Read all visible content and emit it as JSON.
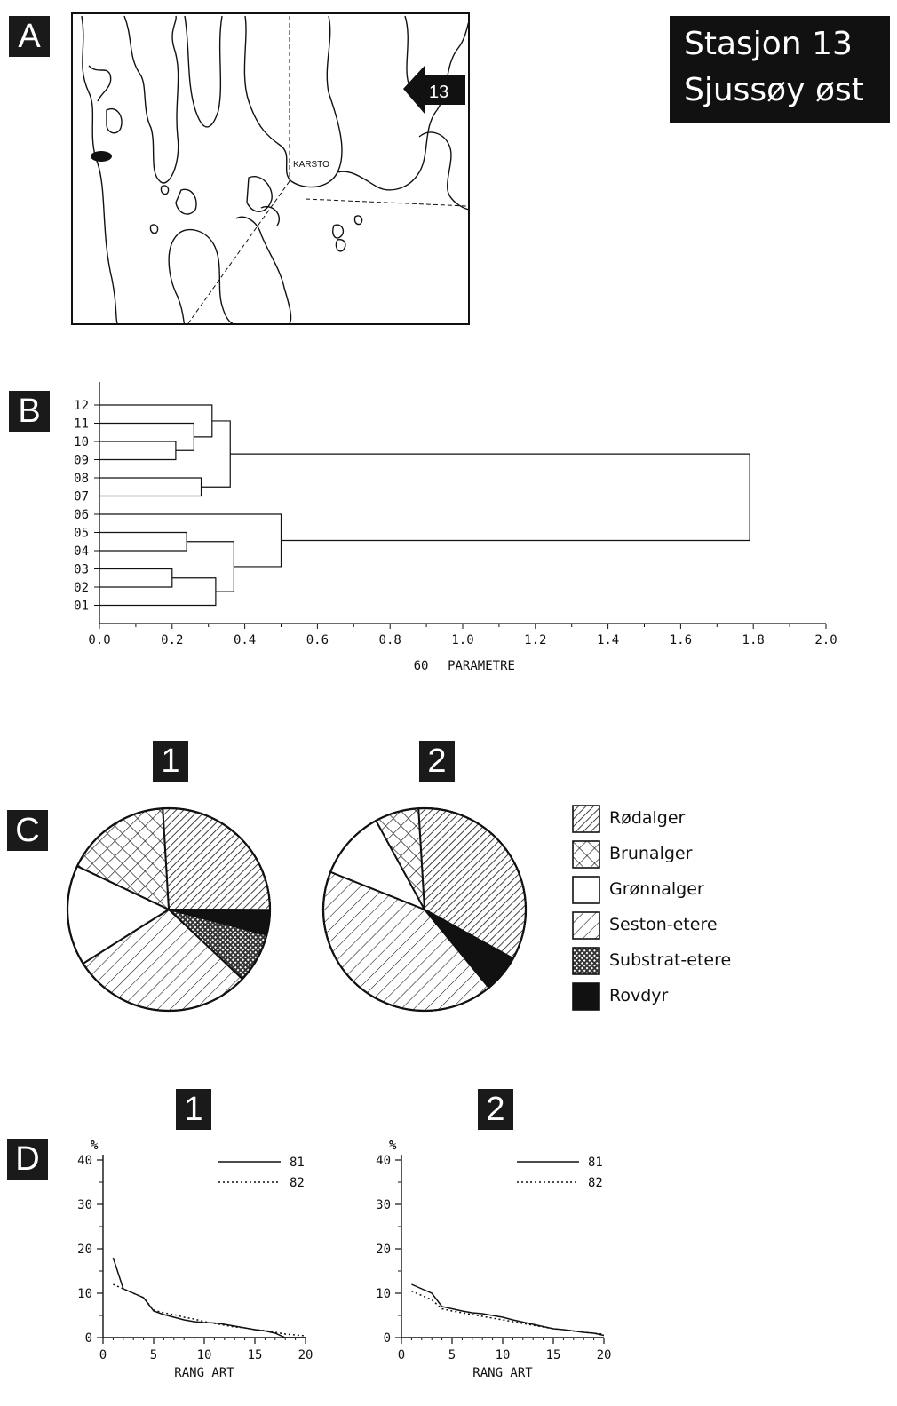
{
  "panels": {
    "a": "A",
    "b": "B",
    "c": "C",
    "d": "D"
  },
  "station": {
    "line1": "Stasjon 13",
    "line2": "Sjussøy øst"
  },
  "map": {
    "place_label": "KARSTO",
    "station_marker": "13"
  },
  "dendrogram": {
    "leaf_labels": [
      "12",
      "11",
      "10",
      "09",
      "08",
      "07",
      "06",
      "05",
      "04",
      "03",
      "02",
      "01"
    ],
    "x_ticks": [
      "0.0",
      "0.2",
      "0.4",
      "0.6",
      "0.8",
      "1.0",
      "1.2",
      "1.4",
      "1.6",
      "1.8",
      "2.0"
    ],
    "xlabel_num": "60",
    "xlabel_text": "PARAMETRE"
  },
  "colors": {
    "ink": "#111111",
    "paper": "#ffffff",
    "badge": "#1a1a1a"
  },
  "legend": [
    {
      "key": "rodalger",
      "label": "Rødalger",
      "pattern": "diagonal-dense"
    },
    {
      "key": "brunalger",
      "label": "Brunalger",
      "pattern": "crosshatch"
    },
    {
      "key": "gronnalger",
      "label": "Grønnalger",
      "pattern": "white"
    },
    {
      "key": "seston",
      "label": "Seston-etere",
      "pattern": "diagonal-sparse"
    },
    {
      "key": "substrat",
      "label": "Substrat-etere",
      "pattern": "dense-dots"
    },
    {
      "key": "rovdyr",
      "label": "Rovdyr",
      "pattern": "solid-black"
    }
  ],
  "pie_titles": [
    "1",
    "2"
  ],
  "rank_titles": [
    "1",
    "2"
  ],
  "rank_axis": {
    "y_unit": "%",
    "y_ticks": [
      "40",
      "30",
      "20",
      "10",
      "0"
    ],
    "x_ticks": [
      "0",
      "5",
      "10",
      "15",
      "20"
    ],
    "xlabel": "RANG ART",
    "legend_solid": "81",
    "legend_dotted": "82"
  },
  "chart_data": [
    {
      "type": "dendrogram",
      "xlabel": "60 PARAMETRE",
      "xlim": [
        0,
        2.0
      ],
      "leaves": [
        "12",
        "11",
        "10",
        "09",
        "08",
        "07",
        "06",
        "05",
        "04",
        "03",
        "02",
        "01"
      ],
      "merges": [
        {
          "a": "10",
          "b": "09",
          "height": 0.21
        },
        {
          "a": "11",
          "b": "10-09",
          "height": 0.26
        },
        {
          "a": "12",
          "b": "11-10-09",
          "height": 0.31
        },
        {
          "a": "08",
          "b": "07",
          "height": 0.28
        },
        {
          "a": "12..09",
          "b": "08-07",
          "height": 0.36
        },
        {
          "a": "05",
          "b": "04",
          "height": 0.24
        },
        {
          "a": "03",
          "b": "02",
          "height": 0.2
        },
        {
          "a": "03-02",
          "b": "01",
          "height": 0.32
        },
        {
          "a": "05-04",
          "b": "03-02-01",
          "height": 0.37
        },
        {
          "a": "06",
          "b": "05..01",
          "height": 0.5
        },
        {
          "a": "12..07",
          "b": "06..01",
          "height": 1.79
        }
      ]
    },
    {
      "type": "pie",
      "title": "1",
      "slices": [
        {
          "name": "Rødalger",
          "value": 26
        },
        {
          "name": "Rovdyr",
          "value": 4
        },
        {
          "name": "Substrat-etere",
          "value": 8
        },
        {
          "name": "Seston-etere",
          "value": 29
        },
        {
          "name": "Grønnalger",
          "value": 16
        },
        {
          "name": "Brunalger",
          "value": 17
        }
      ]
    },
    {
      "type": "pie",
      "title": "2",
      "slices": [
        {
          "name": "Rødalger",
          "value": 34
        },
        {
          "name": "Rovdyr",
          "value": 6
        },
        {
          "name": "Substrat-etere",
          "value": 0
        },
        {
          "name": "Seston-etere",
          "value": 42
        },
        {
          "name": "Grønnalger",
          "value": 11
        },
        {
          "name": "Brunalger",
          "value": 7
        }
      ]
    },
    {
      "type": "line",
      "title": "1",
      "xlabel": "RANG ART",
      "ylabel": "%",
      "xlim": [
        0,
        20
      ],
      "ylim": [
        0,
        40
      ],
      "series": [
        {
          "name": "81",
          "style": "solid",
          "x": [
            1,
            2,
            3,
            4,
            5,
            6,
            7,
            8,
            9,
            10,
            11,
            12,
            13,
            14,
            15,
            16,
            17,
            18,
            19,
            20
          ],
          "y": [
            18,
            11,
            10,
            9,
            6,
            5.2,
            4.6,
            4,
            3.6,
            3.4,
            3.3,
            3,
            2.6,
            2.2,
            1.8,
            1.5,
            1,
            0,
            0,
            0
          ]
        },
        {
          "name": "82",
          "style": "dotted",
          "x": [
            1,
            2,
            3,
            4,
            5,
            6,
            7,
            8,
            9,
            10,
            11,
            12,
            13,
            14,
            15,
            16,
            17,
            18,
            19,
            20
          ],
          "y": [
            12,
            11,
            10,
            9,
            6.2,
            5.6,
            5.2,
            4.6,
            4.2,
            3.6,
            3.2,
            2.8,
            2.4,
            2.2,
            1.8,
            1.6,
            1.2,
            0.8,
            0.6,
            0.4
          ]
        }
      ]
    },
    {
      "type": "line",
      "title": "2",
      "xlabel": "RANG ART",
      "ylabel": "%",
      "xlim": [
        0,
        20
      ],
      "ylim": [
        0,
        40
      ],
      "series": [
        {
          "name": "81",
          "style": "solid",
          "x": [
            1,
            2,
            3,
            4,
            5,
            6,
            7,
            8,
            9,
            10,
            11,
            12,
            13,
            14,
            15,
            16,
            17,
            18,
            19,
            20
          ],
          "y": [
            12,
            11,
            10,
            7,
            6.5,
            6,
            5.6,
            5.4,
            5,
            4.6,
            4,
            3.5,
            3,
            2.5,
            2,
            1.8,
            1.5,
            1.2,
            1,
            0.5
          ]
        },
        {
          "name": "82",
          "style": "dotted",
          "x": [
            1,
            2,
            3,
            4,
            5,
            6,
            7,
            8,
            9,
            10,
            11,
            12,
            13,
            14,
            15,
            16,
            17,
            18,
            19,
            20
          ],
          "y": [
            10.5,
            9.5,
            8.5,
            6.5,
            6,
            5.6,
            5.2,
            4.8,
            4.4,
            4,
            3.6,
            3.2,
            2.8,
            2.4,
            2,
            1.8,
            1.5,
            1.2,
            1,
            0.8
          ]
        }
      ]
    }
  ]
}
